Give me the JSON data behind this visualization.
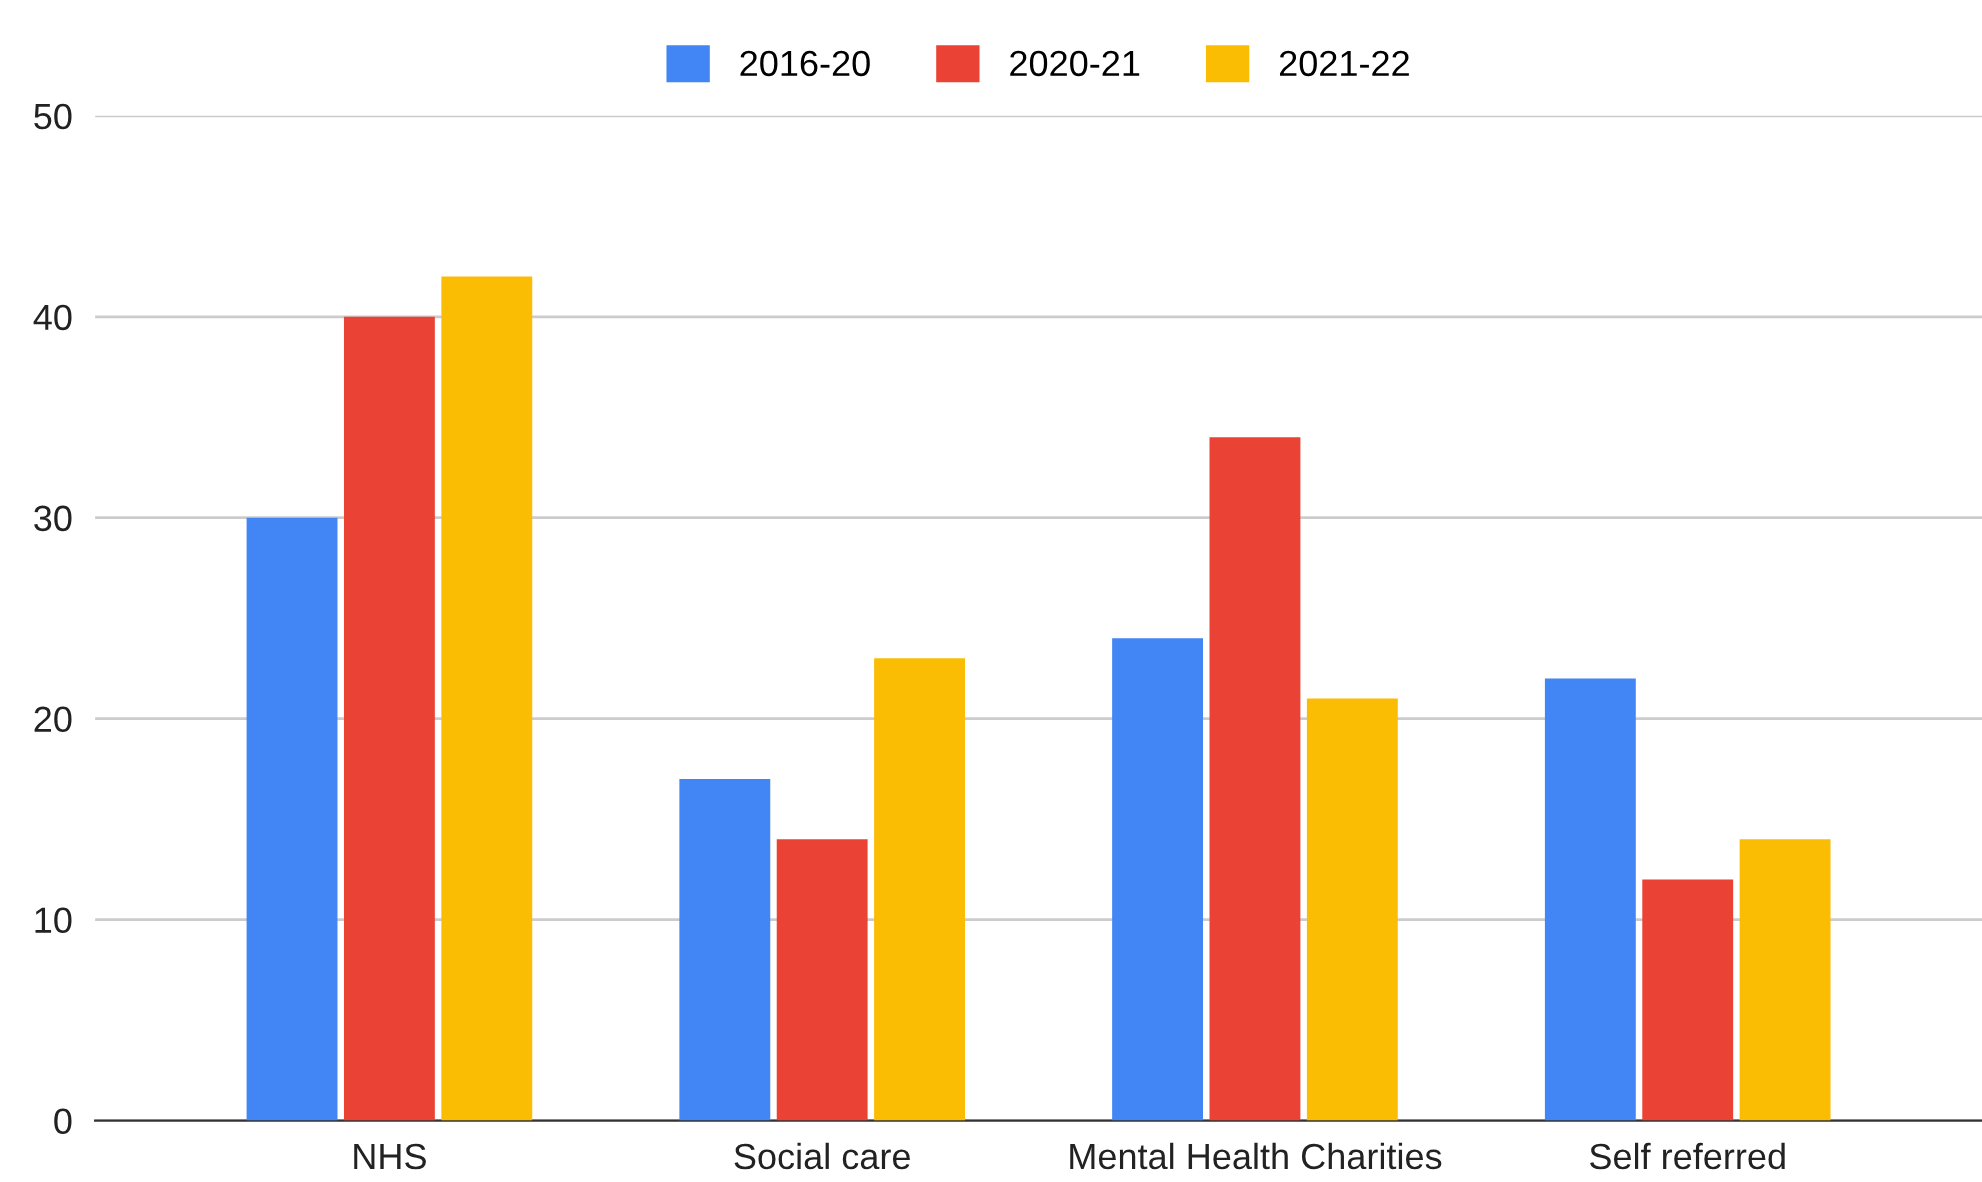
{
  "chart_data": {
    "type": "bar",
    "categories": [
      "NHS",
      "Social care",
      "Mental Health Charities",
      "Self referred"
    ],
    "series": [
      {
        "name": "2016-20",
        "color": "#4285f4",
        "values": [
          30,
          17,
          24,
          22
        ]
      },
      {
        "name": "2020-21",
        "color": "#ea4335",
        "values": [
          40,
          14,
          34,
          12
        ]
      },
      {
        "name": "2021-22",
        "color": "#fbbc04",
        "values": [
          42,
          23,
          21,
          14
        ]
      }
    ],
    "ylim": [
      0,
      50
    ],
    "yticks": [
      0,
      10,
      20,
      30,
      40,
      50
    ],
    "grid": "y",
    "legend": "top"
  }
}
